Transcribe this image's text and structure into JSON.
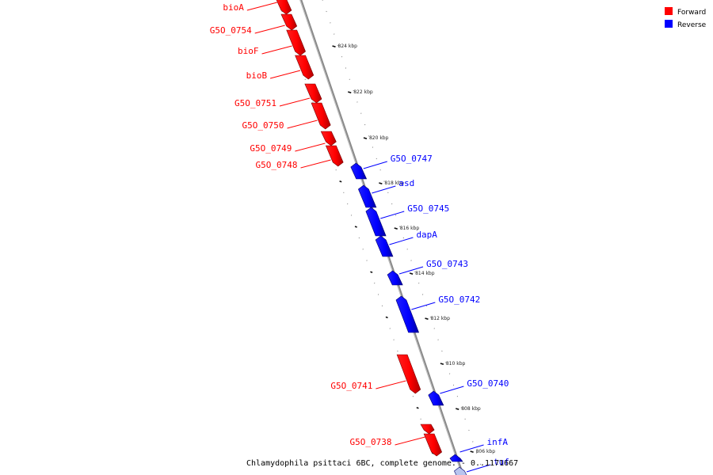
{
  "legend": {
    "forward_label": "Forward",
    "reverse_label": "Reverse",
    "forward_color": "#ff0000",
    "reverse_color": "#0000ff"
  },
  "caption": "Chlamydophila psittaci 6BC, complete genome. - 0..1171667",
  "kbp_ticks": [
    "824 kbp",
    "822 kbp",
    "820 kbp",
    "818 kbp",
    "816 kbp",
    "814 kbp",
    "812 kbp",
    "810 kbp",
    "808 kbp",
    "806 kbp"
  ],
  "forward_genes": [
    "bioA",
    "G5O_0754",
    "bioF",
    "bioB",
    "G5O_0751",
    "G5O_0750",
    "G5O_0749",
    "G5O_0748",
    "G5O_0741",
    "G5O_0738"
  ],
  "reverse_genes": [
    "G5O_0747",
    "asd",
    "G5O_0745",
    "dapA",
    "G5O_0743",
    "G5O_0742",
    "G5O_0740",
    "infA",
    "tuf"
  ]
}
